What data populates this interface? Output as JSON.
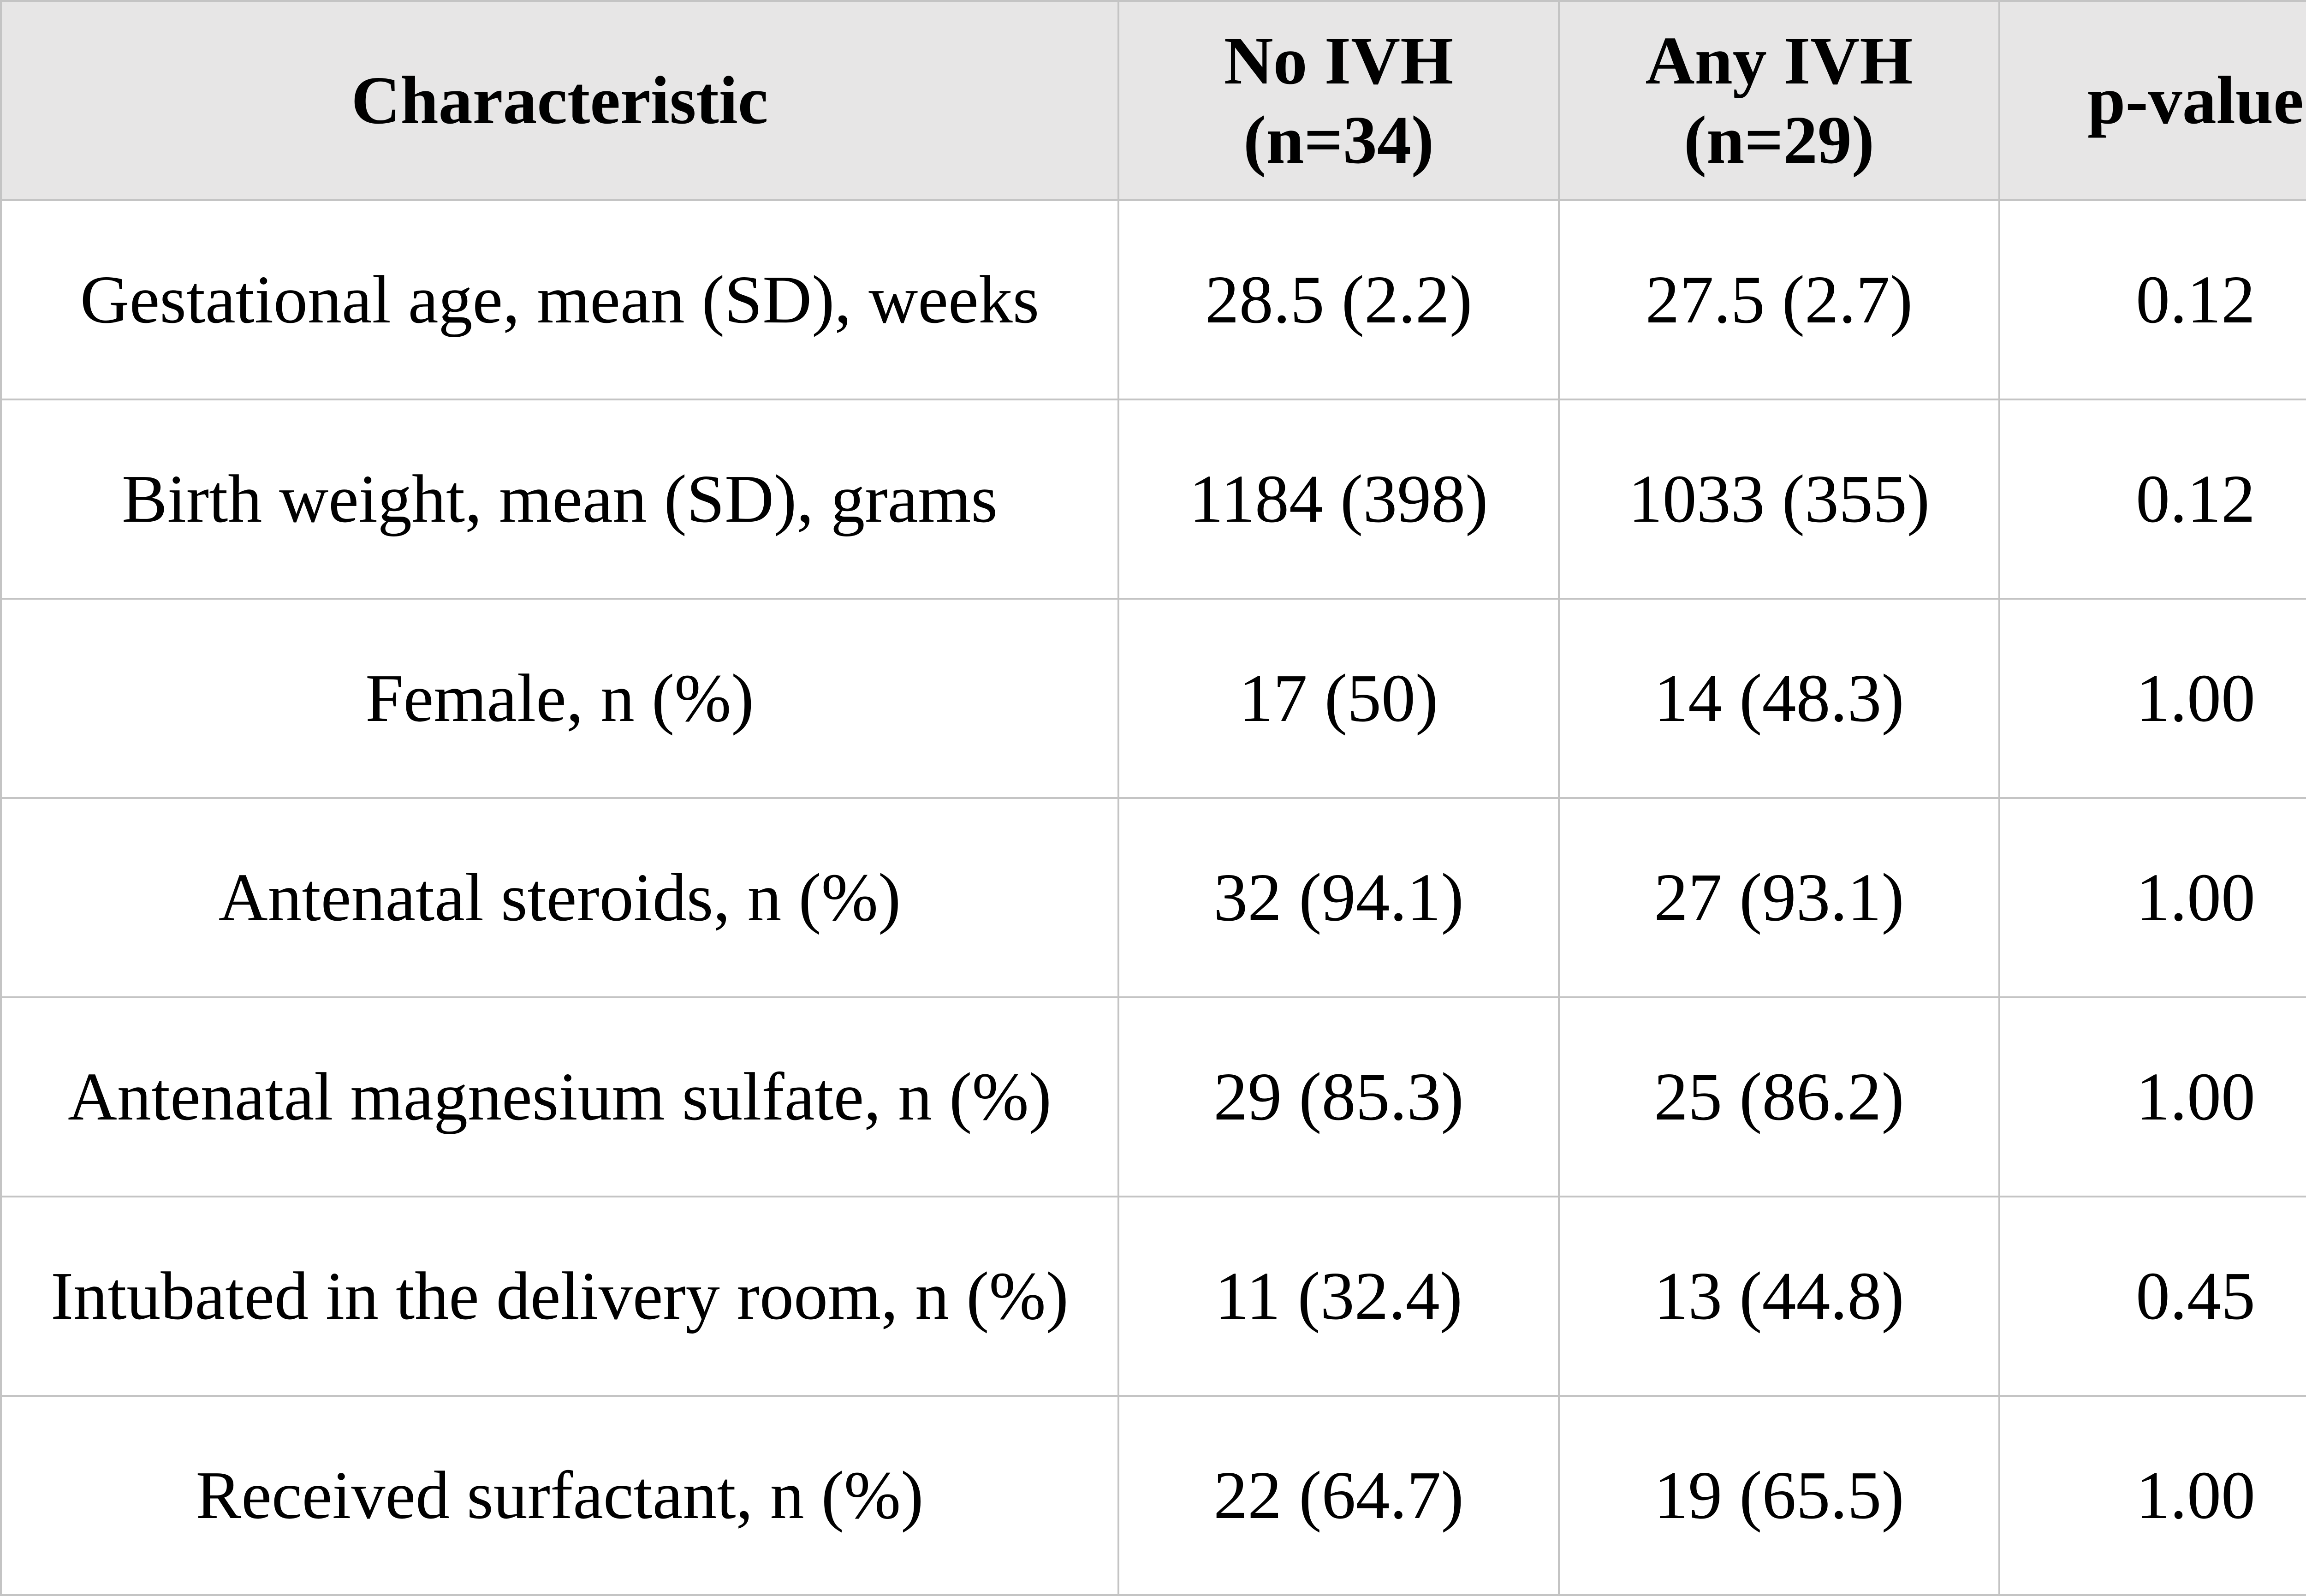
{
  "table": {
    "headers": [
      {
        "line1": "Characteristic",
        "line2": ""
      },
      {
        "line1": "No IVH",
        "line2": "(n=34)"
      },
      {
        "line1": "Any IVH",
        "line2": "(n=29)"
      },
      {
        "line1": "p-value",
        "line2": ""
      }
    ],
    "rows": [
      [
        "Gestational age, mean (SD), weeks",
        "28.5 (2.2)",
        "27.5 (2.7)",
        "0.12"
      ],
      [
        "Birth weight, mean (SD), grams",
        "1184 (398)",
        "1033 (355)",
        "0.12"
      ],
      [
        "Female, n (%)",
        "17 (50)",
        "14 (48.3)",
        "1.00"
      ],
      [
        "Antenatal steroids, n (%)",
        "32 (94.1)",
        "27 (93.1)",
        "1.00"
      ],
      [
        "Antenatal magnesium sulfate, n (%)",
        "29 (85.3)",
        "25 (86.2)",
        "1.00"
      ],
      [
        "Intubated in the delivery room, n (%)",
        "11 (32.4)",
        "13 (44.8)",
        "0.45"
      ],
      [
        "Received surfactant, n (%)",
        "22 (64.7)",
        "19 (65.5)",
        "1.00"
      ]
    ]
  },
  "colors": {
    "header_background": "#e7e6e6",
    "border": "#c4c4c4",
    "text": "#000000"
  }
}
